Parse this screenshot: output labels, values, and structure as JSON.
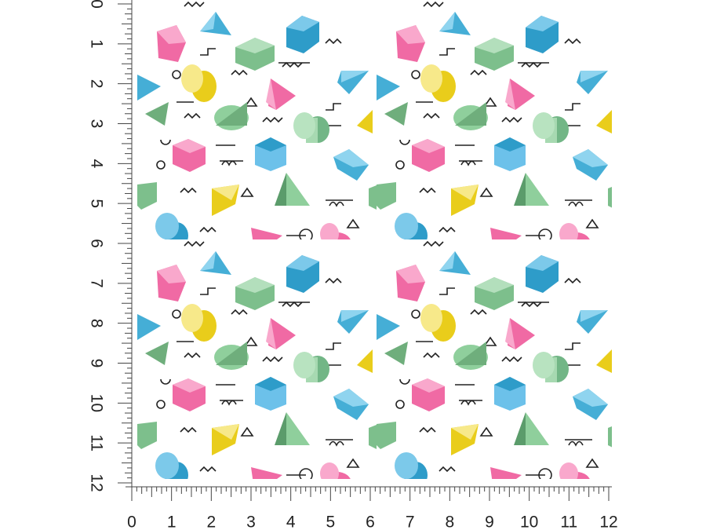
{
  "rulers": {
    "vertical": {
      "labels": [
        0,
        1,
        2,
        3,
        4,
        5,
        6,
        7,
        8,
        9,
        10,
        11,
        12
      ]
    },
    "horizontal": {
      "labels": [
        0,
        1,
        2,
        3,
        4,
        5,
        6,
        7,
        8,
        9,
        10,
        11,
        12
      ]
    }
  }
}
